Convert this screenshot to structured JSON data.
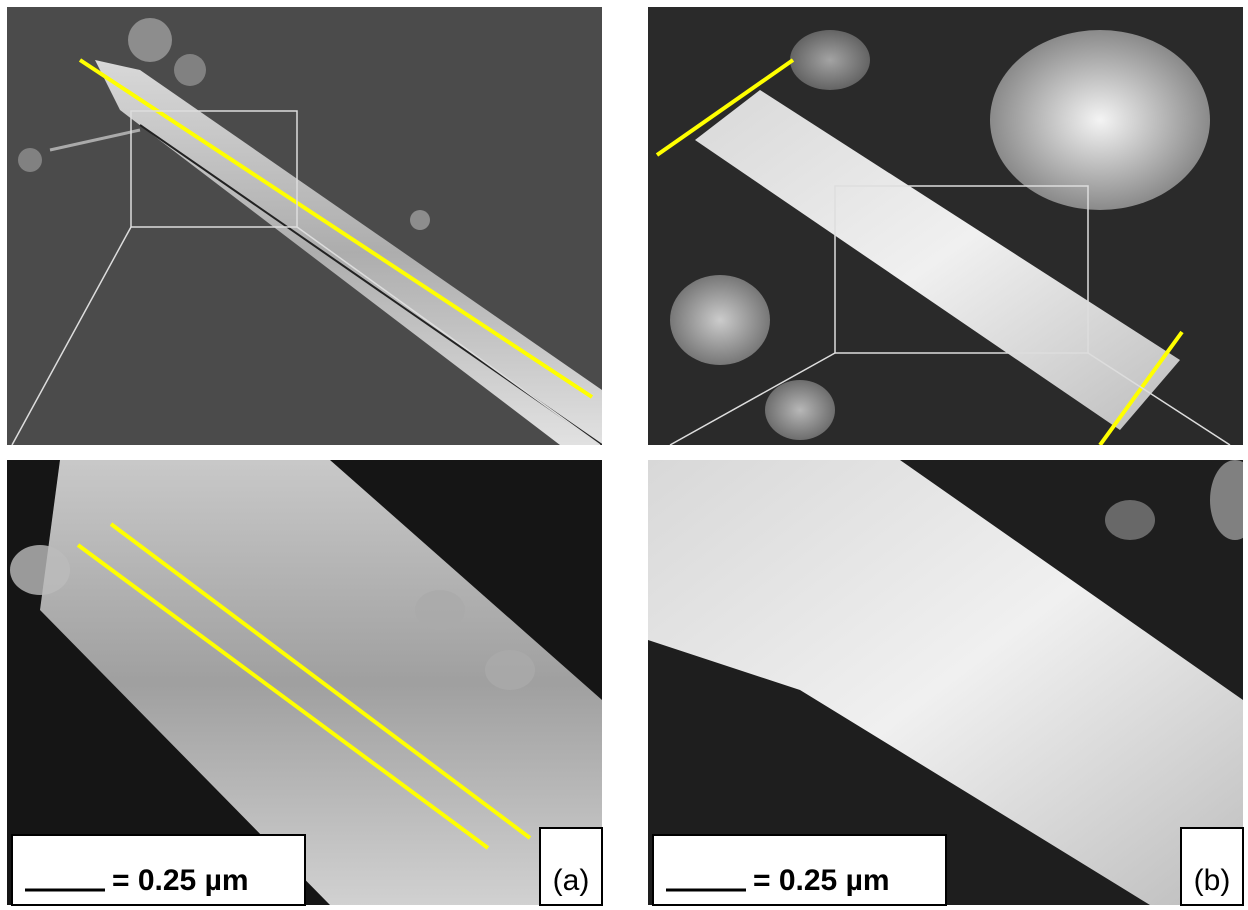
{
  "panels": [
    {
      "scale_label": "= 0.25 µm",
      "label": "(a)"
    },
    {
      "scale_label": "= 0.25 µm",
      "label": "(b)"
    }
  ]
}
